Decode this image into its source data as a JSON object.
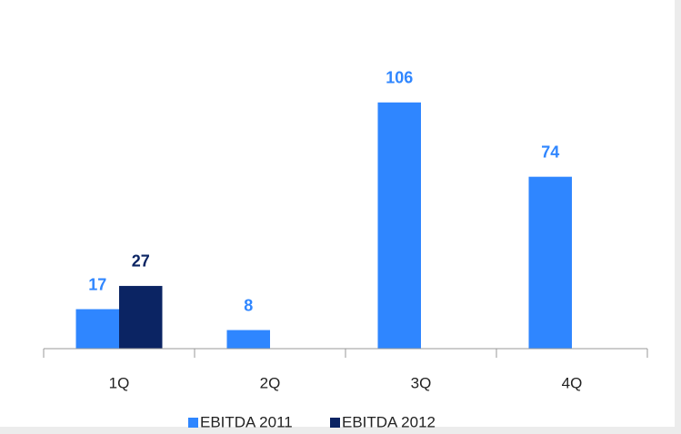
{
  "chart_data": {
    "type": "bar",
    "categories": [
      "1Q",
      "2Q",
      "3Q",
      "4Q"
    ],
    "series": [
      {
        "name": "EBITDA 2011",
        "color": "#2f86ff",
        "values": [
          17,
          8,
          106,
          74
        ]
      },
      {
        "name": "EBITDA 2012",
        "color": "#0b2463",
        "values": [
          27,
          null,
          null,
          null
        ]
      }
    ],
    "ylim": [
      0,
      120
    ],
    "legend": "bottom"
  }
}
